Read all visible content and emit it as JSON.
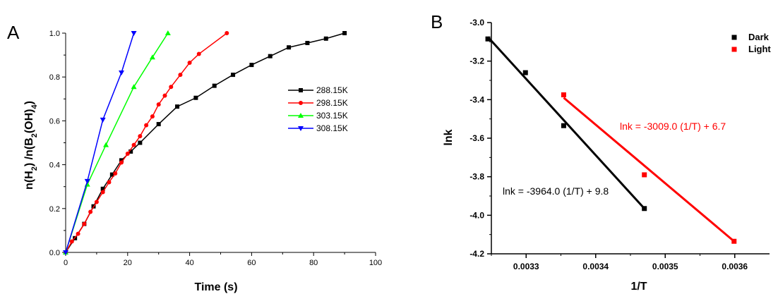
{
  "chart_data": [
    {
      "panel": "A",
      "type": "line",
      "xlabel": "Time (s)",
      "ylabel": "n(H2) /n(B2(OH)4)",
      "xlim": [
        0,
        100
      ],
      "ylim": [
        0,
        1.0
      ],
      "x_ticks": [
        "0",
        "20",
        "40",
        "60",
        "80",
        "100"
      ],
      "y_ticks": [
        "0.0",
        "0.2",
        "0.4",
        "0.6",
        "0.8",
        "1.0"
      ],
      "legend_position": "right",
      "series": [
        {
          "name": "288.15K",
          "color": "#000000",
          "marker": "square",
          "x": [
            0,
            3,
            6,
            9,
            12,
            15,
            18,
            21,
            24,
            30,
            36,
            42,
            48,
            54,
            60,
            66,
            72,
            78,
            84,
            90
          ],
          "y": [
            0,
            0.065,
            0.13,
            0.21,
            0.29,
            0.355,
            0.42,
            0.46,
            0.5,
            0.585,
            0.665,
            0.705,
            0.76,
            0.81,
            0.855,
            0.895,
            0.935,
            0.955,
            0.975,
            1.0
          ]
        },
        {
          "name": "298.15K",
          "color": "#ff0000",
          "marker": "circle",
          "x": [
            0,
            2,
            4,
            6,
            8,
            10,
            12,
            14,
            16,
            18,
            20,
            22,
            24,
            26,
            28,
            30,
            32,
            34,
            37,
            40,
            43,
            52
          ],
          "y": [
            0,
            0.05,
            0.085,
            0.13,
            0.185,
            0.23,
            0.275,
            0.32,
            0.36,
            0.41,
            0.45,
            0.49,
            0.53,
            0.58,
            0.62,
            0.675,
            0.715,
            0.755,
            0.81,
            0.865,
            0.905,
            1.0
          ]
        },
        {
          "name": "303.15K",
          "color": "#00ff00",
          "marker": "triangle-up",
          "x": [
            0,
            7,
            13,
            22,
            28,
            33
          ],
          "y": [
            0,
            0.31,
            0.49,
            0.755,
            0.89,
            1.0
          ]
        },
        {
          "name": "308.15K",
          "color": "#0000ff",
          "marker": "triangle-down",
          "x": [
            0,
            7,
            12,
            18,
            22
          ],
          "y": [
            0,
            0.325,
            0.605,
            0.82,
            1.0
          ]
        }
      ]
    },
    {
      "panel": "B",
      "type": "scatter",
      "xlabel": "1/T",
      "ylabel": "lnk",
      "xlim": [
        0.00325,
        0.00365
      ],
      "ylim": [
        -4.2,
        -3.0
      ],
      "x_ticks": [
        "0.0033",
        "0.0034",
        "0.0035",
        "0.0036"
      ],
      "y_ticks": [
        "-3.0",
        "-3.2",
        "-3.4",
        "-3.6",
        "-3.8",
        "-4.0",
        "-4.2"
      ],
      "legend_position": "top-right",
      "series": [
        {
          "name": "Dark",
          "color": "#000000",
          "marker": "square",
          "x": [
            0.003245,
            0.003299,
            0.003354,
            0.00347
          ],
          "y": [
            -3.085,
            -3.26,
            -3.535,
            -3.965
          ],
          "fit": {
            "label": "lnk = -3964.0 (1/T) + 9.8",
            "x_range": [
              0.003245,
              0.00347
            ],
            "y_range": [
              -3.075,
              -3.965
            ]
          }
        },
        {
          "name": "Light",
          "color": "#ff0000",
          "marker": "square",
          "x": [
            0.003354,
            0.00347,
            0.003599
          ],
          "y": [
            -3.375,
            -3.79,
            -4.135
          ],
          "fit": {
            "label": "lnk = -3009.0 (1/T) + 6.7",
            "x_range": [
              0.003354,
              0.003599
            ],
            "y_range": [
              -3.39,
              -4.135
            ]
          }
        }
      ]
    }
  ]
}
